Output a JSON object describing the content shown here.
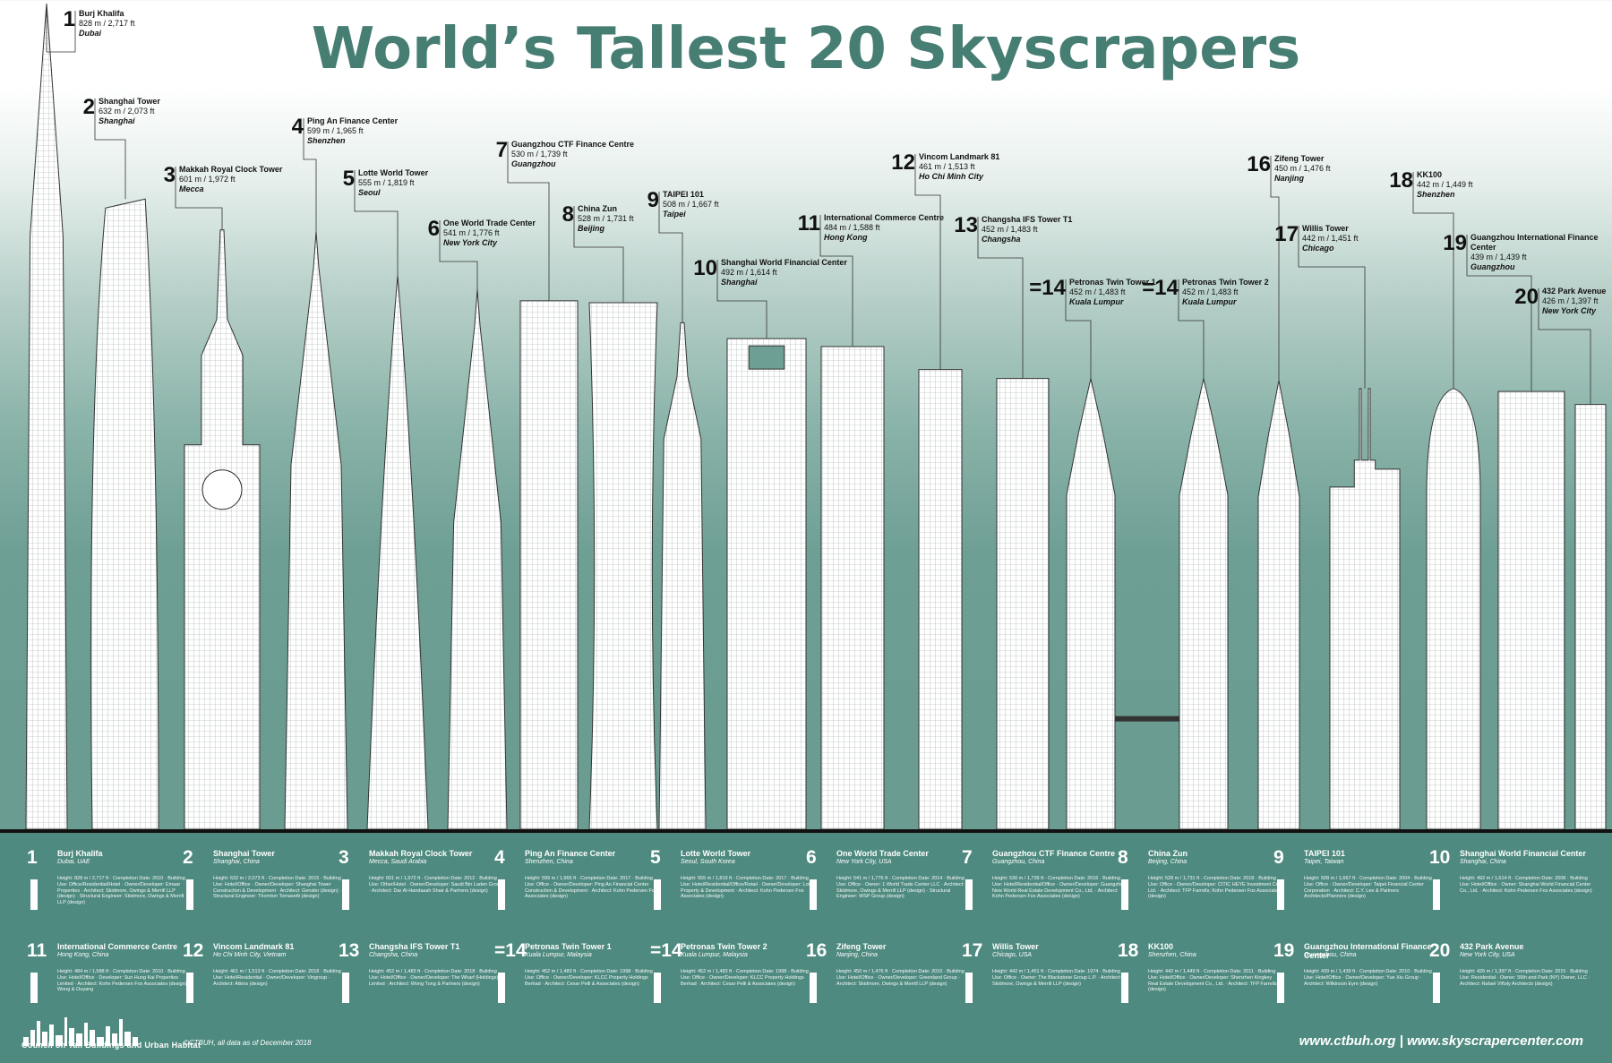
{
  "title": "World’s Tallest 20 Skyscrapers",
  "colors": {
    "teal": "#467e73",
    "footer": "#4e8a7f",
    "building": "#ffffff",
    "line": "#333333"
  },
  "chart_data": {
    "type": "bar",
    "unit": "m",
    "ylim": [
      0,
      840
    ],
    "buildings": [
      {
        "rank": "1",
        "name": "Burj Khalifa",
        "height": "828 m / 2,717 ft",
        "m": 828,
        "city": "Dubai"
      },
      {
        "rank": "2",
        "name": "Shanghai Tower",
        "height": "632 m / 2,073 ft",
        "m": 632,
        "city": "Shanghai"
      },
      {
        "rank": "3",
        "name": "Makkah Royal Clock Tower",
        "height": "601 m / 1,972 ft",
        "m": 601,
        "city": "Mecca"
      },
      {
        "rank": "4",
        "name": "Ping An Finance Center",
        "height": "599 m / 1,965 ft",
        "m": 599,
        "city": "Shenzhen"
      },
      {
        "rank": "5",
        "name": "Lotte World Tower",
        "height": "555 m / 1,819 ft",
        "m": 555,
        "city": "Seoul"
      },
      {
        "rank": "6",
        "name": "One World Trade Center",
        "height": "541 m / 1,776 ft",
        "m": 541,
        "city": "New York City"
      },
      {
        "rank": "7",
        "name": "Guangzhou CTF Finance Centre",
        "height": "530 m / 1,739 ft",
        "m": 530,
        "city": "Guangzhou"
      },
      {
        "rank": "8",
        "name": "China Zun",
        "height": "528 m / 1,731 ft",
        "m": 528,
        "city": "Beijing"
      },
      {
        "rank": "9",
        "name": "TAIPEI 101",
        "height": "508 m / 1,667 ft",
        "m": 508,
        "city": "Taipei"
      },
      {
        "rank": "10",
        "name": "Shanghai World Financial Center",
        "height": "492 m / 1,614 ft",
        "m": 492,
        "city": "Shanghai"
      },
      {
        "rank": "11",
        "name": "International Commerce Centre",
        "height": "484 m / 1,588 ft",
        "m": 484,
        "city": "Hong Kong"
      },
      {
        "rank": "12",
        "name": "Vincom Landmark 81",
        "height": "461 m / 1,513 ft",
        "m": 461,
        "city": "Ho Chi Minh City"
      },
      {
        "rank": "13",
        "name": "Changsha IFS Tower T1",
        "height": "452 m / 1,483 ft",
        "m": 452,
        "city": "Changsha"
      },
      {
        "rank": "=14",
        "name": "Petronas Twin Tower 1",
        "height": "452 m / 1,483 ft",
        "m": 452,
        "city": "Kuala Lumpur"
      },
      {
        "rank": "=14",
        "name": "Petronas Twin Tower 2",
        "height": "452 m / 1,483 ft",
        "m": 452,
        "city": "Kuala Lumpur"
      },
      {
        "rank": "16",
        "name": "Zifeng Tower",
        "height": "450 m / 1,476 ft",
        "m": 450,
        "city": "Nanjing"
      },
      {
        "rank": "17",
        "name": "Willis Tower",
        "height": "442 m / 1,451 ft",
        "m": 442,
        "city": "Chicago"
      },
      {
        "rank": "18",
        "name": "KK100",
        "height": "442 m / 1,449 ft",
        "m": 442,
        "city": "Shenzhen"
      },
      {
        "rank": "19",
        "name": "Guangzhou International Finance Center",
        "height": "439 m / 1,439 ft",
        "m": 439,
        "city": "Guangzhou"
      },
      {
        "rank": "20",
        "name": "432 Park Avenue",
        "height": "426 m / 1,397 ft",
        "m": 426,
        "city": "New York City"
      }
    ]
  },
  "cards": [
    {
      "rank": "1",
      "name": "Burj Khalifa",
      "city": "Dubai, UAE",
      "info": "Height: 828 m / 2,717 ft · Completion Date: 2010 · Building Use: Office/Residential/Hotel · Owner/Developer: Emaar Properties · Architect: Skidmore, Owings & Merrill LLP (design) · Structural Engineer: Skidmore, Owings & Merrill LLP (design)"
    },
    {
      "rank": "2",
      "name": "Shanghai Tower",
      "city": "Shanghai, China",
      "info": "Height: 632 m / 2,073 ft · Completion Date: 2015 · Building Use: Hotel/Office · Owner/Developer: Shanghai Tower Construction & Development · Architect: Gensler (design) · Structural Engineer: Thornton Tomasetti (design)"
    },
    {
      "rank": "3",
      "name": "Makkah Royal Clock Tower",
      "city": "Mecca, Saudi Arabia",
      "info": "Height: 601 m / 1,972 ft · Completion Date: 2012 · Building Use: Other/Hotel · Owner/Developer: Saudi Bin Laden Group · Architect: Dar Al-Handasah Shair & Partners (design)"
    },
    {
      "rank": "4",
      "name": "Ping An Finance Center",
      "city": "Shenzhen, China",
      "info": "Height: 599 m / 1,965 ft · Completion Date: 2017 · Building Use: Office · Owner/Developer: Ping An Financial Center Construction & Development · Architect: Kohn Pedersen Fox Associates (design)"
    },
    {
      "rank": "5",
      "name": "Lotte World Tower",
      "city": "Seoul, South Korea",
      "info": "Height: 555 m / 1,819 ft · Completion Date: 2017 · Building Use: Hotel/Residential/Office/Retail · Owner/Developer: Lotte Property & Development · Architect: Kohn Pedersen Fox Associates (design)"
    },
    {
      "rank": "6",
      "name": "One World Trade Center",
      "city": "New York City, USA",
      "info": "Height: 541 m / 1,776 ft · Completion Date: 2014 · Building Use: Office · Owner: 1 World Trade Center LLC · Architect: Skidmore, Owings & Merrill LLP (design) · Structural Engineer: WSP Group (design)"
    },
    {
      "rank": "7",
      "name": "Guangzhou CTF Finance Centre",
      "city": "Guangzhou, China",
      "info": "Height: 530 m / 1,739 ft · Completion Date: 2016 · Building Use: Hotel/Residential/Office · Owner/Developer: Guangzhou New World Real Estate Development Co., Ltd. · Architect: Kohn Pedersen Fox Associates (design)"
    },
    {
      "rank": "8",
      "name": "China Zun",
      "city": "Beijing, China",
      "info": "Height: 528 m / 1,731 ft · Completion Date: 2018 · Building Use: Office · Owner/Developer: CITIC HEYE Investment Co., Ltd. · Architect: TFP Farrells; Kohn Pedersen Fox Associates (design)"
    },
    {
      "rank": "9",
      "name": "TAIPEI 101",
      "city": "Taipei, Taiwan",
      "info": "Height: 508 m / 1,667 ft · Completion Date: 2004 · Building Use: Office · Owner/Developer: Taipei Financial Center Corporation · Architect: C.Y. Lee & Partners Architects/Planners (design)"
    },
    {
      "rank": "10",
      "name": "Shanghai World Financial Center",
      "city": "Shanghai, China",
      "info": "Height: 492 m / 1,614 ft · Completion Date: 2008 · Building Use: Hotel/Office · Owner: Shanghai World Financial Center Co., Ltd. · Architect: Kohn Pedersen Fox Associates (design)"
    },
    {
      "rank": "11",
      "name": "International Commerce Centre",
      "city": "Hong Kong, China",
      "info": "Height: 484 m / 1,588 ft · Completion Date: 2010 · Building Use: Hotel/Office · Developer: Sun Hung Kai Properties Limited · Architect: Kohn Pedersen Fox Associates (design); Wong & Ouyang"
    },
    {
      "rank": "12",
      "name": "Vincom Landmark 81",
      "city": "Ho Chi Minh City, Vietnam",
      "info": "Height: 461 m / 1,513 ft · Completion Date: 2018 · Building Use: Hotel/Residential · Owner/Developer: Vingroup · Architect: Atkins (design)"
    },
    {
      "rank": "13",
      "name": "Changsha IFS Tower T1",
      "city": "Changsha, China",
      "info": "Height: 452 m / 1,483 ft · Completion Date: 2018 · Building Use: Hotel/Office · Owner/Developer: The Wharf (Holdings) Limited · Architect: Wong Tung & Partners (design)"
    },
    {
      "rank": "=14",
      "name": "Petronas Twin Tower 1",
      "city": "Kuala Lumpur, Malaysia",
      "info": "Height: 452 m / 1,483 ft · Completion Date: 1998 · Building Use: Office · Owner/Developer: KLCC Property Holdings Berhad · Architect: Cesar Pelli & Associates (design)"
    },
    {
      "rank": "=14",
      "name": "Petronas Twin Tower 2",
      "city": "Kuala Lumpur, Malaysia",
      "info": "Height: 452 m / 1,483 ft · Completion Date: 1998 · Building Use: Office · Owner/Developer: KLCC Property Holdings Berhad · Architect: Cesar Pelli & Associates (design)"
    },
    {
      "rank": "16",
      "name": "Zifeng Tower",
      "city": "Nanjing, China",
      "info": "Height: 450 m / 1,476 ft · Completion Date: 2010 · Building Use: Hotel/Office · Owner/Developer: Greenland Group · Architect: Skidmore, Owings & Merrill LLP (design)"
    },
    {
      "rank": "17",
      "name": "Willis Tower",
      "city": "Chicago, USA",
      "info": "Height: 442 m / 1,451 ft · Completion Date: 1974 · Building Use: Office · Owner: The Blackstone Group L.P. · Architect: Skidmore, Owings & Merrill LLP (design)"
    },
    {
      "rank": "18",
      "name": "KK100",
      "city": "Shenzhen, China",
      "info": "Height: 442 m / 1,449 ft · Completion Date: 2011 · Building Use: Hotel/Office · Owner/Developer: Shenzhen Kingkey Real Estate Development Co., Ltd. · Architect: TFP Farrells (design)"
    },
    {
      "rank": "19",
      "name": "Guangzhou International Finance Center",
      "city": "Guangzhou, China",
      "info": "Height: 439 m / 1,439 ft · Completion Date: 2010 · Building Use: Hotel/Office · Owner/Developer: Yue Xiu Group · Architect: Wilkinson Eyre (design)"
    },
    {
      "rank": "20",
      "name": "432 Park Avenue",
      "city": "New York City, USA",
      "info": "Height: 426 m / 1,397 ft · Completion Date: 2015 · Building Use: Residential · Owner: 56th and Park (NY) Owner, LLC · Architect: Rafael Viñoly Architects (design)"
    }
  ],
  "footer": {
    "logo_text": "Council on Tall Buildings and Urban Habitat",
    "copyright": "©CTBUH, all data as of December 2018",
    "urls": "www.ctbuh.org  |  www.skyscrapercenter.com"
  }
}
